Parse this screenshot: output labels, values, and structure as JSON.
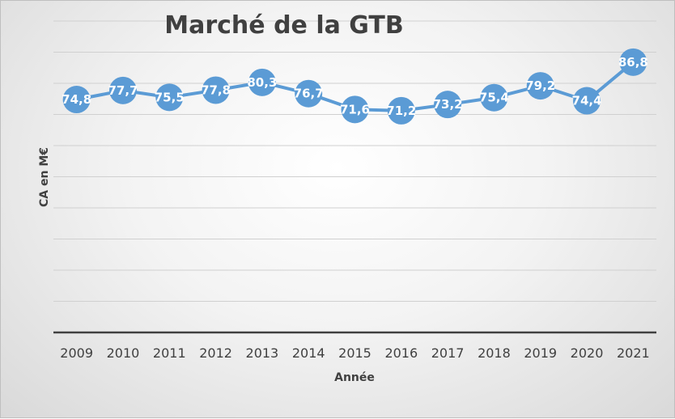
{
  "chart_data": {
    "type": "line",
    "title": "Marché de la GTB",
    "xlabel": "Année",
    "ylabel": "CA en M€",
    "categories": [
      "2009",
      "2010",
      "2011",
      "2012",
      "2013",
      "2014",
      "2015",
      "2016",
      "2017",
      "2018",
      "2019",
      "2020",
      "2021"
    ],
    "series": [
      {
        "values": [
          74.8,
          77.7,
          75.5,
          77.8,
          80.3,
          76.7,
          71.6,
          71.2,
          73.2,
          75.4,
          79.2,
          74.4,
          86.8
        ],
        "data_labels": [
          "74,8",
          "77,7",
          "75,5",
          "77,8",
          "80,3",
          "76,7",
          "71,6",
          "71,2",
          "73,2",
          "75,4",
          "79,2",
          "74,4",
          "86,8"
        ]
      }
    ],
    "ylim": [
      0,
      100
    ],
    "grid": true,
    "legend": "none",
    "colors": {
      "line": "#5B9BD5",
      "marker": "#5B9BD5",
      "grid": "#d0d0d0",
      "axis": "#404040"
    }
  }
}
